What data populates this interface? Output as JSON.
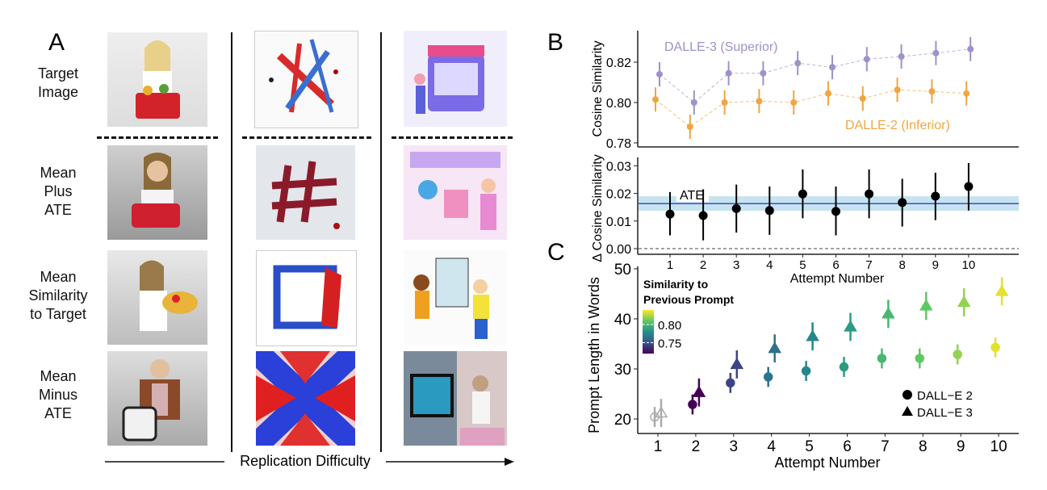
{
  "panel_a": {
    "letter": "A",
    "row_labels": [
      "Target Image",
      "Mean Plus ATE",
      "Mean Similarity to Target",
      "Mean Minus ATE"
    ],
    "row_label_lines": [
      [
        "Target",
        "Image"
      ],
      [
        "Mean",
        "Plus",
        "ATE"
      ],
      [
        "Mean",
        "Similarity",
        "to Target"
      ],
      [
        "Mean",
        "Minus",
        "ATE"
      ]
    ],
    "axis_label": "Replication Difficulty"
  },
  "chart_data": [
    {
      "type": "line",
      "panel": "B",
      "ylabel": "Cosine Similarity",
      "x": [
        1,
        2,
        3,
        4,
        5,
        6,
        7,
        8,
        9,
        10
      ],
      "ylim": [
        0.777,
        0.833
      ],
      "yticks": [
        0.78,
        0.8,
        0.82
      ],
      "ytick_labels": [
        "0.78",
        "0.80",
        "0.82"
      ],
      "series": [
        {
          "name": "DALLE-3 (Superior)",
          "color": "#9b93c9",
          "values": [
            0.814,
            0.8,
            0.8145,
            0.8145,
            0.8195,
            0.8175,
            0.8215,
            0.8228,
            0.8245,
            0.8265
          ],
          "error": 0.006
        },
        {
          "name": "DALLE-2 (Inferior)",
          "color": "#f0a640",
          "values": [
            0.8015,
            0.788,
            0.8,
            0.8007,
            0.8,
            0.8045,
            0.802,
            0.8063,
            0.8055,
            0.8045
          ],
          "error": 0.006
        }
      ]
    },
    {
      "type": "scatter",
      "panel": "B-delta",
      "ylabel": "Δ Cosine Similarity",
      "xlabel": "Attempt Number",
      "x": [
        1,
        2,
        3,
        4,
        5,
        6,
        7,
        8,
        9,
        10
      ],
      "xtick_labels": [
        "1",
        "2",
        "3",
        "4",
        "5",
        "6",
        "7",
        "8",
        "9",
        "10"
      ],
      "ylim": [
        -0.002,
        0.033
      ],
      "yticks": [
        0.0,
        0.01,
        0.02,
        0.03
      ],
      "ytick_labels": [
        "0.00",
        "0.01",
        "0.02",
        "0.03"
      ],
      "values": [
        0.0125,
        0.012,
        0.0145,
        0.0138,
        0.0198,
        0.0135,
        0.0198,
        0.0167,
        0.019,
        0.0225
      ],
      "lower": [
        0.0048,
        0.003,
        0.0058,
        0.005,
        0.011,
        0.0048,
        0.011,
        0.008,
        0.0103,
        0.0138
      ],
      "upper": [
        0.0205,
        0.0215,
        0.0232,
        0.0225,
        0.0287,
        0.0225,
        0.0287,
        0.0253,
        0.0275,
        0.031
      ],
      "ate": {
        "label": "ATE",
        "value": 0.0163,
        "lower": 0.0137,
        "upper": 0.019,
        "line_color": "#3a4fc8",
        "band_color": "#c7e3ef"
      },
      "reference_line": 0.0
    },
    {
      "type": "scatter",
      "panel": "C",
      "ylabel": "Prompt Length in Words",
      "xlabel": "Attempt Number",
      "x": [
        1,
        2,
        3,
        4,
        5,
        6,
        7,
        8,
        9,
        10
      ],
      "xtick_labels": [
        "1",
        "2",
        "3",
        "4",
        "5",
        "6",
        "7",
        "8",
        "9",
        "10"
      ],
      "ylim": [
        17,
        50
      ],
      "yticks": [
        20,
        30,
        40,
        50
      ],
      "ytick_labels": [
        "20",
        "30",
        "40",
        "50"
      ],
      "colorbar": {
        "title_lines": [
          "Similarity to",
          "Previous Prompt"
        ],
        "tick_labels": [
          "0.80",
          "0.75"
        ],
        "ticks": [
          0.8,
          0.75
        ],
        "range": [
          0.72,
          0.84
        ]
      },
      "similarity": [
        null,
        0.72,
        0.745,
        0.765,
        0.775,
        0.785,
        0.8,
        0.81,
        0.82,
        0.835
      ],
      "series": [
        {
          "name": "DALL−E 2",
          "marker": "circle",
          "values": [
            20.4,
            22.9,
            27.2,
            28.4,
            29.6,
            30.4,
            32.1,
            32.1,
            32.9,
            34.3
          ],
          "error": 2.0
        },
        {
          "name": "DALL−E 3",
          "marker": "triangle",
          "values": [
            21.2,
            25.3,
            30.9,
            34.1,
            36.5,
            38.4,
            41.0,
            42.6,
            43.3,
            45.5
          ],
          "error": 2.8
        }
      ]
    }
  ],
  "panel_letters": {
    "b": "B",
    "c": "C"
  }
}
